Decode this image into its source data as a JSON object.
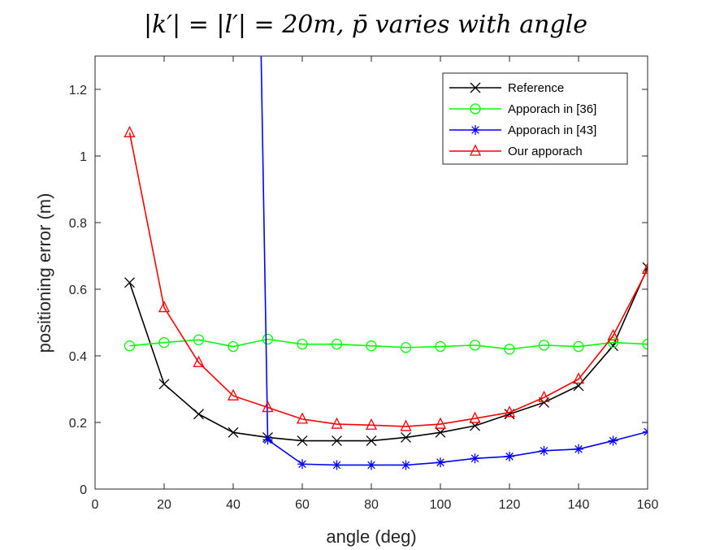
{
  "chart_data": {
    "type": "line",
    "title": "|k′| = |l′| = 20m, p̄ varies with angle",
    "xlabel": "angle (deg)",
    "ylabel": "positioning error (m)",
    "xlim": [
      0,
      160
    ],
    "ylim": [
      0,
      1.3
    ],
    "xticks": [
      0,
      20,
      40,
      60,
      80,
      100,
      120,
      140,
      160
    ],
    "yticks": [
      0,
      0.2,
      0.4,
      0.6,
      0.8,
      1,
      1.2
    ],
    "xtick_labels": [
      "0",
      "20",
      "40",
      "60",
      "80",
      "100",
      "120",
      "140",
      "160"
    ],
    "ytick_labels": [
      "0",
      "0.2",
      "0.4",
      "0.6",
      "0.8",
      "1",
      "1.2"
    ],
    "grid": false,
    "legend_position": "top-right",
    "x": [
      10,
      20,
      30,
      40,
      50,
      60,
      70,
      80,
      90,
      100,
      110,
      120,
      130,
      140,
      150,
      160
    ],
    "series": [
      {
        "name": "Reference",
        "color": "#000000",
        "marker": "x",
        "values": [
          0.62,
          0.315,
          0.225,
          0.17,
          0.155,
          0.145,
          0.145,
          0.145,
          0.155,
          0.17,
          0.19,
          0.225,
          0.26,
          0.31,
          0.43,
          0.665
        ]
      },
      {
        "name": "Apporach in [36]",
        "color": "#00ff00",
        "marker": "o",
        "values": [
          0.43,
          0.44,
          0.448,
          0.428,
          0.45,
          0.435,
          0.435,
          0.43,
          0.425,
          0.428,
          0.432,
          0.42,
          0.432,
          0.428,
          0.44,
          0.435
        ]
      },
      {
        "name": "Apporach in [43]",
        "color": "#0000ff",
        "marker": "*",
        "values": [
          null,
          null,
          null,
          null,
          0.148,
          0.075,
          0.072,
          0.072,
          0.072,
          0.08,
          0.092,
          0.098,
          0.115,
          0.12,
          0.145,
          0.172
        ],
        "segment_to_offscale": {
          "x_from": 48,
          "y_from": 1.35,
          "x_to": 50,
          "y_to": 0.148
        }
      },
      {
        "name": "Our apporach",
        "color": "#ff0000",
        "marker": "triangle",
        "values": [
          1.07,
          0.545,
          0.38,
          0.28,
          0.245,
          0.21,
          0.195,
          0.192,
          0.188,
          0.195,
          0.212,
          0.23,
          0.275,
          0.33,
          0.46,
          0.66
        ]
      }
    ]
  }
}
